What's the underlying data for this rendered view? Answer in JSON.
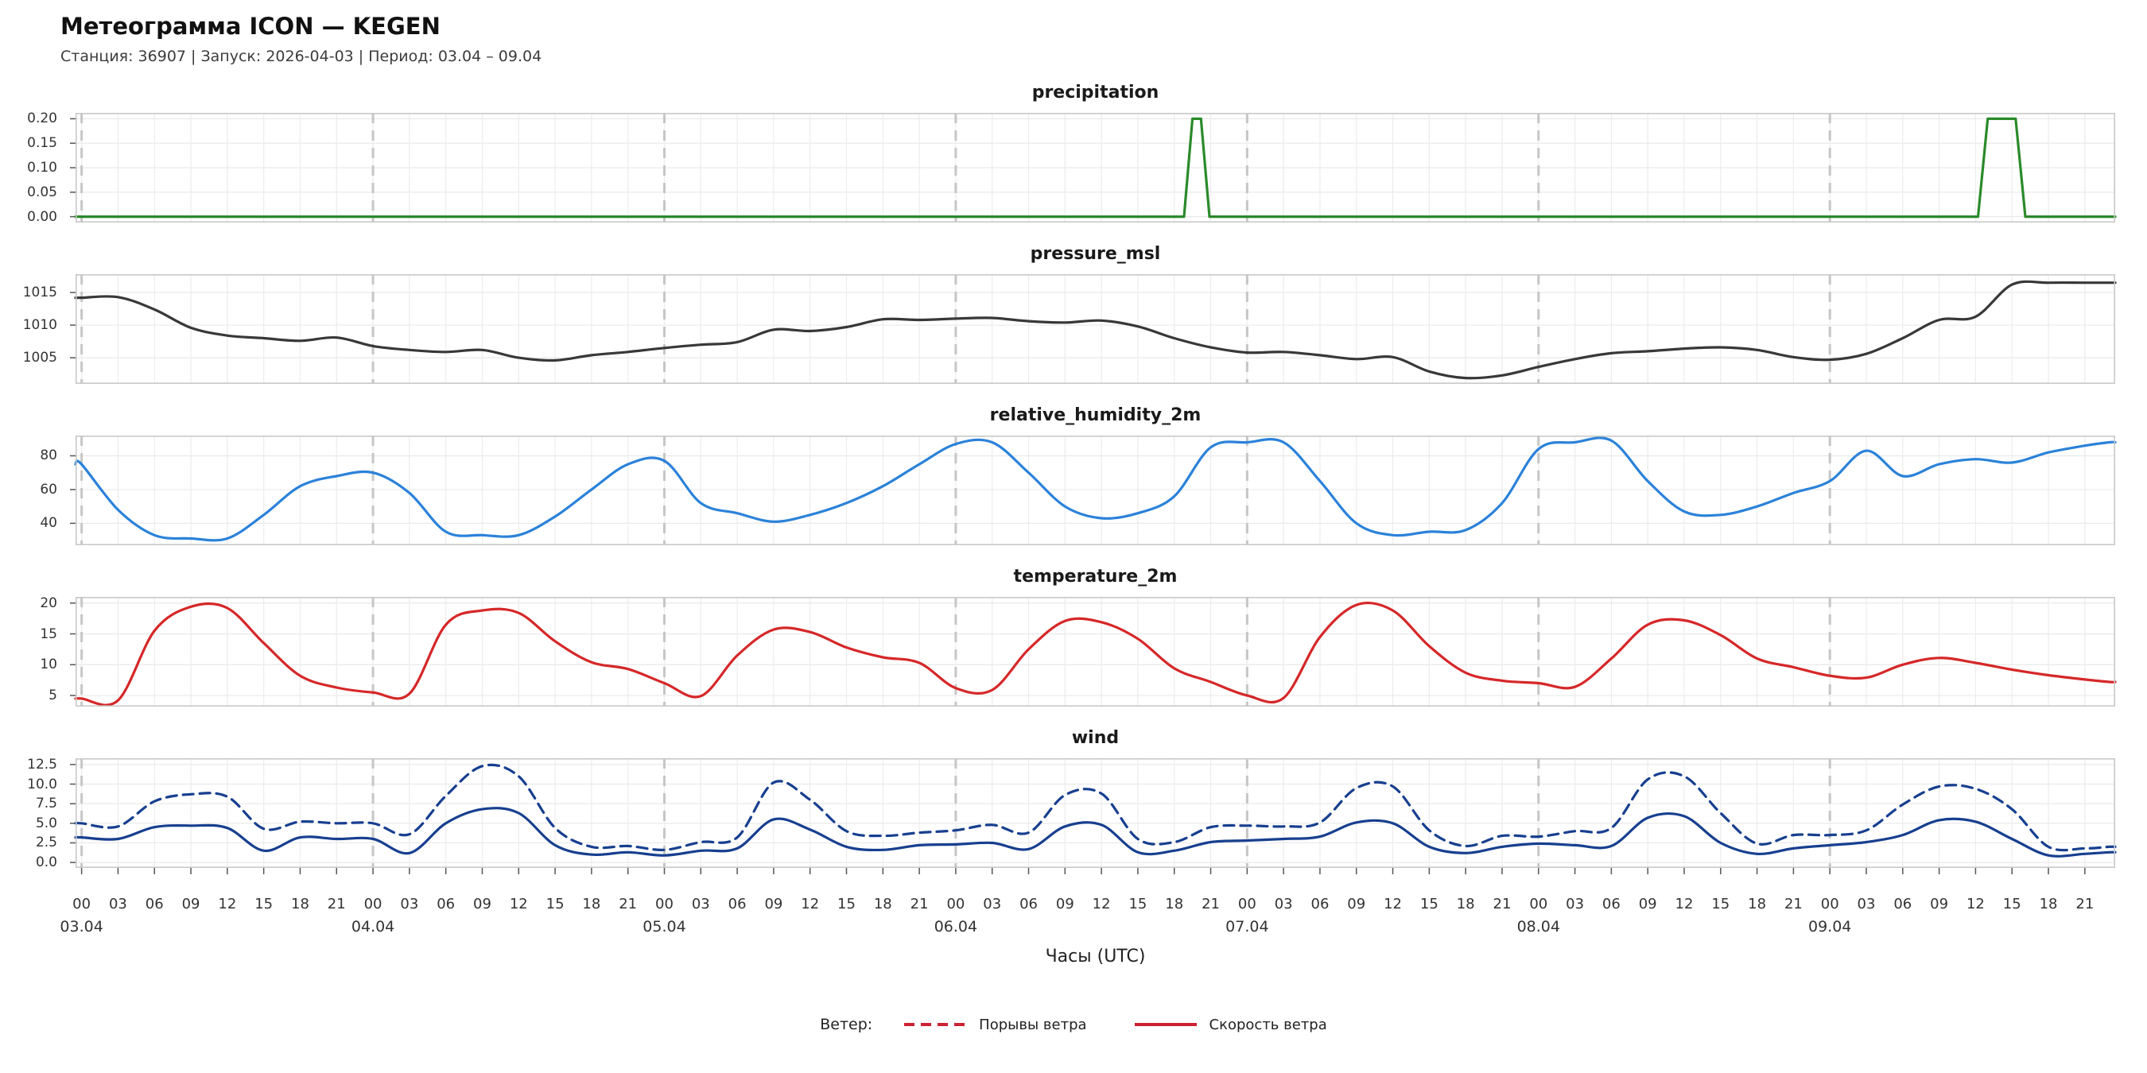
{
  "header": {
    "title": "Метеограмма ICON — KEGEN",
    "subtitle": "Станция: 36907  | Запуск: 2026-04-03  | Период: 03.04 – 09.04"
  },
  "xaxis": {
    "title": "Часы (UTC)",
    "domain_hours": [
      -0.5,
      167.5
    ],
    "hour_step": 3,
    "hour_label_cycle": [
      "00",
      "03",
      "06",
      "09",
      "12",
      "15",
      "18",
      "21"
    ],
    "day_labels": [
      "03.04",
      "04.04",
      "05.04",
      "06.04",
      "07.04",
      "08.04",
      "09.04"
    ]
  },
  "legend": {
    "prefix": "Ветер:",
    "items": [
      {
        "label": "Порывы ветра",
        "style": "dashed",
        "color": "#cc2233"
      },
      {
        "label": "Скорость ветра",
        "style": "solid",
        "color": "#cc2233"
      }
    ]
  },
  "chart_data": [
    {
      "type": "line",
      "title": "precipitation",
      "color": "#2a8a2a",
      "ylim": [
        -0.012,
        0.212
      ],
      "yticks": [
        0.0,
        0.05,
        0.1,
        0.15,
        0.2
      ],
      "ytick_labels": [
        "0.00",
        "0.05",
        "0.10",
        "0.15",
        "0.20"
      ],
      "series": [
        {
          "name": "precipitation",
          "smooth": false,
          "dash": false,
          "x": [
            0,
            90.8,
            91.5,
            92.2,
            92.9,
            156.2,
            157.0,
            159.3,
            160.1,
            167
          ],
          "values": [
            0,
            0,
            0.2,
            0.2,
            0,
            0,
            0.2,
            0.2,
            0,
            0
          ]
        }
      ]
    },
    {
      "type": "line",
      "title": "pressure_msl",
      "color": "#383838",
      "ylim": [
        1001.0,
        1017.8
      ],
      "yticks": [
        1005,
        1010,
        1015
      ],
      "ytick_labels": [
        "1005",
        "1010",
        "1015"
      ],
      "series": [
        {
          "name": "pressure_msl",
          "smooth": true,
          "dash": false,
          "values": [
            1014.2,
            1014.3,
            1012.4,
            1009.6,
            1008.4,
            1008.0,
            1007.6,
            1008.1,
            1006.8,
            1006.2,
            1005.9,
            1006.2,
            1005.0,
            1004.6,
            1005.4,
            1005.9,
            1006.5,
            1007.0,
            1007.4,
            1009.3,
            1009.1,
            1009.7,
            1010.9,
            1010.8,
            1011.0,
            1011.1,
            1010.6,
            1010.4,
            1010.7,
            1009.8,
            1008.0,
            1006.6,
            1005.8,
            1005.9,
            1005.4,
            1004.8,
            1005.1,
            1002.9,
            1001.9,
            1002.3,
            1003.6,
            1004.8,
            1005.7,
            1006.0,
            1006.4,
            1006.6,
            1006.2,
            1005.1,
            1004.7,
            1005.6,
            1008.0,
            1010.8,
            1011.3,
            1016.2,
            1016.5,
            1016.5,
            1016.5
          ]
        }
      ]
    },
    {
      "type": "line",
      "title": "relative_humidity_2m",
      "color": "#2b82d9",
      "ylim": [
        27,
        92
      ],
      "yticks": [
        40,
        60,
        80
      ],
      "ytick_labels": [
        "40",
        "60",
        "80"
      ],
      "series": [
        {
          "name": "relative_humidity_2m",
          "smooth": true,
          "dash": false,
          "values": [
            75,
            48,
            33,
            31,
            31,
            45,
            62,
            68,
            70,
            58,
            35,
            33,
            33,
            44,
            60,
            75,
            77,
            52,
            46,
            41,
            45,
            52,
            62,
            75,
            87,
            88,
            70,
            50,
            43,
            46,
            56,
            85,
            88,
            88,
            65,
            40,
            33,
            35,
            36,
            52,
            84,
            88,
            89,
            65,
            47,
            45,
            50,
            58,
            65,
            83,
            68,
            75,
            78,
            76,
            82,
            86,
            88
          ]
        }
      ]
    },
    {
      "type": "line",
      "title": "temperature_2m",
      "color": "#d62728",
      "ylim": [
        3.2,
        21.0
      ],
      "yticks": [
        5,
        10,
        15,
        20
      ],
      "ytick_labels": [
        "5",
        "10",
        "15",
        "20"
      ],
      "series": [
        {
          "name": "temperature_2m",
          "smooth": true,
          "dash": false,
          "values": [
            4.5,
            4.2,
            15.5,
            19.4,
            19.2,
            13.5,
            8.2,
            6.3,
            5.5,
            5.3,
            16.5,
            18.8,
            18.4,
            13.8,
            10.4,
            9.3,
            7.0,
            4.9,
            11.5,
            15.7,
            15.3,
            12.8,
            11.2,
            10.3,
            6.2,
            5.9,
            12.5,
            17.1,
            16.9,
            14.2,
            9.4,
            7.2,
            5.0,
            4.6,
            14.5,
            19.7,
            18.8,
            13.0,
            8.7,
            7.4,
            7.0,
            6.4,
            11.0,
            16.5,
            17.2,
            14.8,
            11.0,
            9.6,
            8.2,
            7.9,
            10.0,
            11.1,
            10.3,
            9.2,
            8.3,
            7.6,
            7.2
          ]
        }
      ]
    },
    {
      "type": "line",
      "title": "wind",
      "color": "#173f8f",
      "ylim": [
        -0.7,
        13.3
      ],
      "yticks": [
        0.0,
        2.5,
        5.0,
        7.5,
        10.0,
        12.5
      ],
      "ytick_labels": [
        "0.0",
        "2.5",
        "5.0",
        "7.5",
        "10.0",
        "12.5"
      ],
      "series": [
        {
          "name": "Порывы ветра",
          "smooth": true,
          "dash": true,
          "values": [
            5.0,
            4.6,
            7.8,
            8.7,
            8.4,
            4.3,
            5.2,
            5.0,
            5.0,
            3.6,
            8.5,
            12.3,
            11.0,
            4.4,
            2.0,
            2.1,
            1.6,
            2.6,
            3.2,
            10.2,
            8.0,
            4.0,
            3.4,
            3.8,
            4.1,
            4.8,
            3.8,
            8.6,
            8.8,
            3.0,
            2.6,
            4.5,
            4.7,
            4.6,
            5.1,
            9.5,
            9.7,
            4.1,
            2.1,
            3.4,
            3.3,
            4.0,
            4.4,
            10.6,
            11.0,
            6.3,
            2.4,
            3.5,
            3.5,
            4.1,
            7.4,
            9.7,
            9.4,
            6.8,
            2.0,
            1.8,
            2.0
          ]
        },
        {
          "name": "Скорость ветра",
          "smooth": true,
          "dash": false,
          "values": [
            3.2,
            3.0,
            4.5,
            4.7,
            4.4,
            1.5,
            3.2,
            3.0,
            3.0,
            1.2,
            5.0,
            6.8,
            6.3,
            2.2,
            1.0,
            1.3,
            0.9,
            1.5,
            1.8,
            5.5,
            4.2,
            2.0,
            1.6,
            2.2,
            2.3,
            2.5,
            1.7,
            4.6,
            4.8,
            1.3,
            1.5,
            2.6,
            2.8,
            3.0,
            3.3,
            5.1,
            5.0,
            2.0,
            1.2,
            2.0,
            2.4,
            2.2,
            2.1,
            5.7,
            5.9,
            2.5,
            1.1,
            1.8,
            2.2,
            2.6,
            3.5,
            5.4,
            5.2,
            3.0,
            0.9,
            1.1,
            1.3
          ]
        }
      ]
    }
  ]
}
